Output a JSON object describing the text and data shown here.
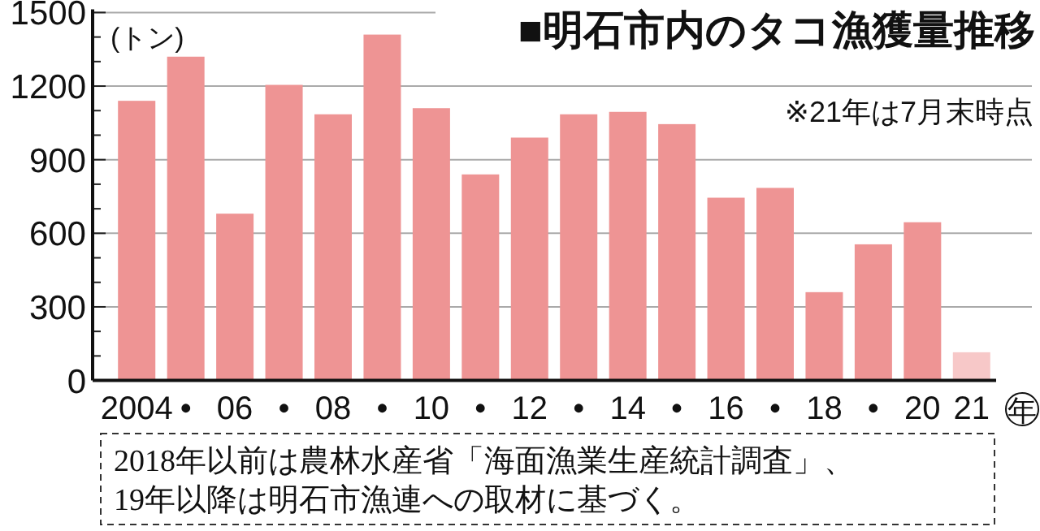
{
  "chart_data": {
    "type": "bar",
    "title": "■明石市内のタコ漁獲量推移",
    "ylabel": "(トン)",
    "xlabel": "年",
    "categories": [
      "2004",
      "•",
      "06",
      "•",
      "08",
      "•",
      "10",
      "•",
      "12",
      "•",
      "14",
      "•",
      "16",
      "•",
      "18",
      "•",
      "20",
      "21"
    ],
    "values": [
      1140,
      1320,
      680,
      1205,
      1085,
      1410,
      1110,
      840,
      990,
      1085,
      1095,
      1045,
      745,
      785,
      360,
      555,
      645,
      115
    ],
    "colors": [
      "#ee9494",
      "#ee9494",
      "#ee9494",
      "#ee9494",
      "#ee9494",
      "#ee9494",
      "#ee9494",
      "#ee9494",
      "#ee9494",
      "#ee9494",
      "#ee9494",
      "#ee9494",
      "#ee9494",
      "#ee9494",
      "#ee9494",
      "#ee9494",
      "#ee9494",
      "#f7c8c8"
    ],
    "ylim": [
      0,
      1500
    ],
    "yticks": [
      0,
      {
        "value": 100,
        "label": null
      },
      {
        "value": 200,
        "label": null
      },
      300,
      {
        "value": 400,
        "label": null
      },
      {
        "value": 500,
        "label": null
      },
      600,
      {
        "value": 700,
        "label": null
      },
      {
        "value": 800,
        "label": null
      },
      900,
      {
        "value": 1000,
        "label": null
      },
      {
        "value": 1100,
        "label": null
      },
      1200,
      {
        "value": 1300,
        "label": null
      },
      {
        "value": 1400,
        "label": null
      },
      1500
    ],
    "grid": "y",
    "annotations": [
      "※21年は7月末時点",
      "2018年以前は農林水産省「海面漁業生産統計調査」、\n19年以降は明石市漁連への取材に基づく。"
    ]
  }
}
